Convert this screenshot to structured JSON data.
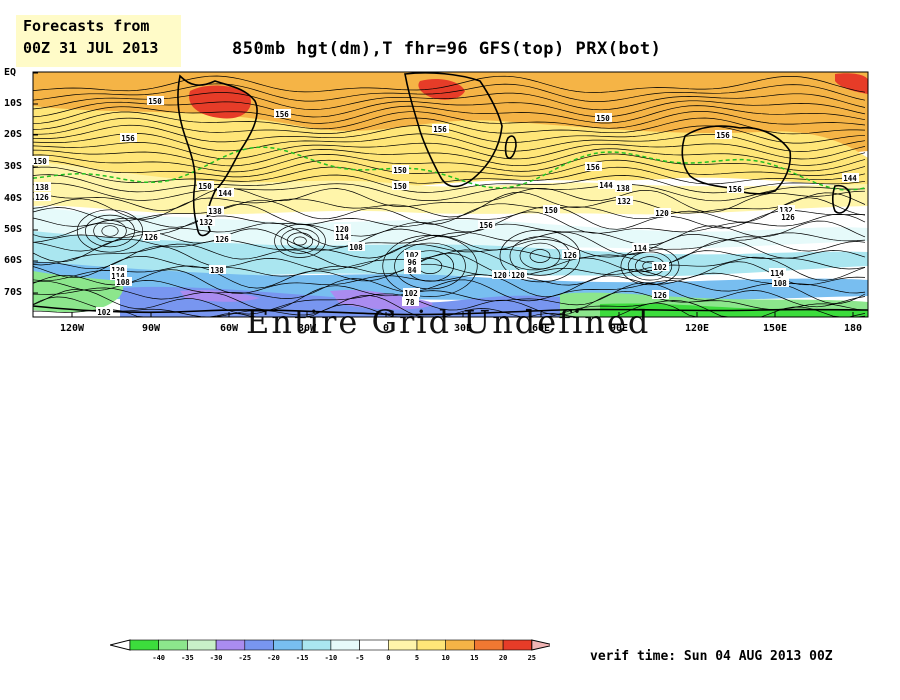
{
  "badge": {
    "line1": "Forecasts from",
    "line2": "00Z 31 JUL 2013"
  },
  "title": "850mb hgt(dm),T  fhr=96  GFS(top)  PRX(bot)",
  "overlay_text": "Entire Grid Undefined",
  "verif": "verif time: Sun 04 AUG 2013 00Z",
  "lat_labels": [
    "EQ",
    "10S",
    "20S",
    "30S",
    "40S",
    "50S",
    "60S",
    "70S"
  ],
  "lon_labels": [
    "120W",
    "90W",
    "60W",
    "30W",
    "0",
    "30E",
    "60E",
    "90E",
    "120E",
    "150E",
    "180"
  ],
  "contour_labels": [
    "150",
    "156",
    "156",
    "156",
    "150",
    "156",
    "150",
    "156",
    "156",
    "150",
    "144",
    "144",
    "138",
    "132",
    "120",
    "150",
    "156",
    "150",
    "144",
    "138",
    "132",
    "126",
    "126",
    "126",
    "120",
    "114",
    "108",
    "102",
    "96",
    "84",
    "120",
    "120",
    "114",
    "102",
    "102",
    "108",
    "114",
    "132",
    "126",
    "126",
    "150",
    "138",
    "126",
    "120",
    "114",
    "108",
    "102",
    "78",
    "138"
  ],
  "colorbar": {
    "ticks": [
      "-40",
      "-35",
      "-30",
      "-25",
      "-20",
      "-15",
      "-10",
      "-5",
      "0",
      "5",
      "10",
      "15",
      "20",
      "25"
    ],
    "colors": [
      "#3cdc3c",
      "#8ce68c",
      "#c8f0c8",
      "#aa8cf0",
      "#7896f0",
      "#78bef0",
      "#aae6f0",
      "#e6fafa",
      "#ffffff",
      "#fff5aa",
      "#ffe678",
      "#f5b446",
      "#f07832",
      "#e63c28",
      "#f0b4b4"
    ]
  },
  "temperature_bands": {
    "colors": {
      "very_warm": "#e63c28",
      "warm": "#f5b446",
      "mild": "#ffe678",
      "pale": "#fff5aa",
      "neutral": "#ffffff",
      "cool": "#e6fafa",
      "cold": "#aae6f0",
      "colder": "#78bef0",
      "very_cold": "#7896f0",
      "extreme": "#aa8cf0",
      "green": "#8ce68c",
      "bright_green": "#3cdc3c"
    }
  }
}
